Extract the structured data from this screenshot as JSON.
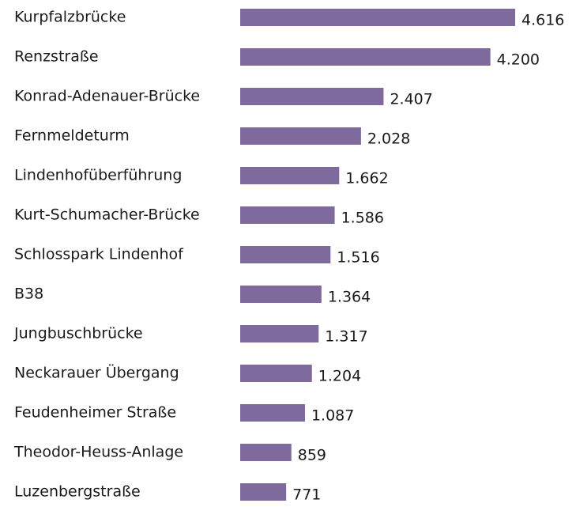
{
  "chart_data": {
    "type": "bar",
    "orientation": "horizontal",
    "color": "#7e6a9d",
    "categories": [
      "Kurpfalzbrücke",
      "Renzstraße",
      "Konrad-Adenauer-Brücke",
      "Fernmeldeturm",
      "Lindenhofüberführung",
      "Kurt-Schumacher-Brücke",
      "Schlosspark Lindenhof",
      "B38",
      "Jungbuschbrücke",
      "Neckarauer Übergang",
      "Feudenheimer Straße",
      "Theodor-Heuss-Anlage",
      "Luzenbergstraße"
    ],
    "values": [
      4616,
      4200,
      2407,
      2028,
      1662,
      1586,
      1516,
      1364,
      1317,
      1204,
      1087,
      859,
      771
    ],
    "value_labels": [
      "4.616",
      "4.200",
      "2.407",
      "2.028",
      "1.662",
      "1.586",
      "1.516",
      "1.364",
      "1.317",
      "1.204",
      "1.087",
      "859",
      "771"
    ]
  }
}
